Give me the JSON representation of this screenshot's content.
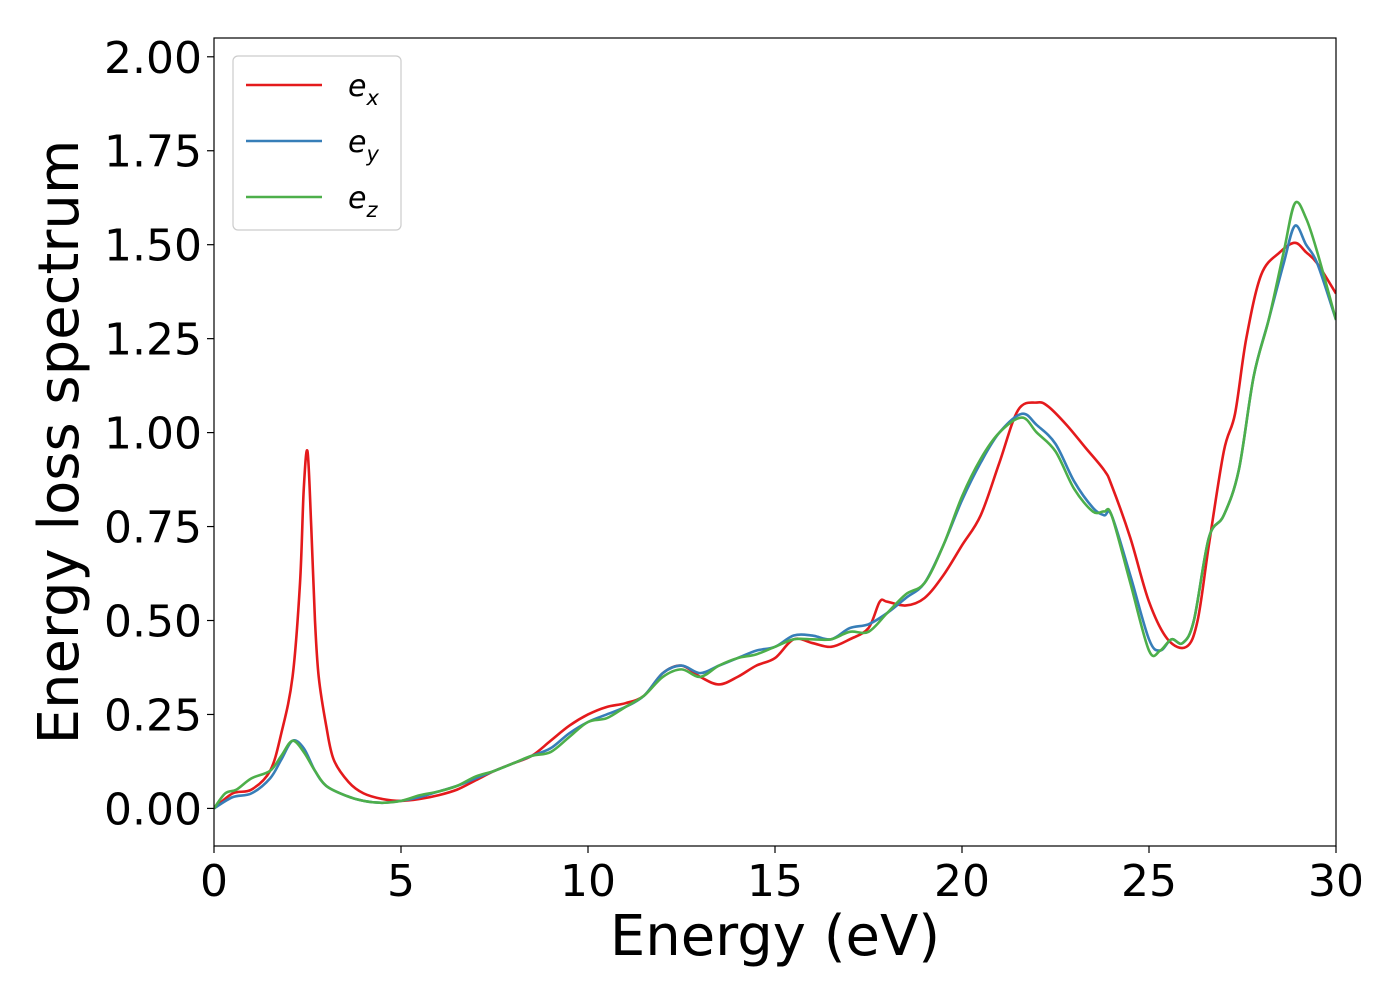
{
  "chart_data": {
    "type": "line",
    "title": "",
    "xlabel": "Energy (eV)",
    "ylabel": "Energy loss spectrum",
    "xlim": [
      0,
      30
    ],
    "ylim": [
      -0.1,
      2.05
    ],
    "xticks": [
      0,
      5,
      10,
      15,
      20,
      25,
      30
    ],
    "xtick_labels": [
      "0",
      "5",
      "10",
      "15",
      "20",
      "25",
      "30"
    ],
    "yticks": [
      0,
      0.25,
      0.5,
      0.75,
      1.0,
      1.25,
      1.5,
      1.75,
      2.0
    ],
    "ytick_labels": [
      "0.00",
      "0.25",
      "0.50",
      "0.75",
      "1.00",
      "1.25",
      "1.50",
      "1.75",
      "2.00"
    ],
    "grid": false,
    "legend_position": "top-left",
    "series": [
      {
        "name": "e_x",
        "legend_base": "e",
        "legend_sub": "x",
        "color": "#e41a1c",
        "x": [
          0,
          0.5,
          1.0,
          1.5,
          1.8,
          2.1,
          2.3,
          2.4,
          2.5,
          2.6,
          2.7,
          2.8,
          3.0,
          3.2,
          3.6,
          4.0,
          4.5,
          5.0,
          5.5,
          6.0,
          6.5,
          7.0,
          7.5,
          8.0,
          8.5,
          9.0,
          9.5,
          10.0,
          10.5,
          11.0,
          11.5,
          12.0,
          12.5,
          13.0,
          13.5,
          14.0,
          14.5,
          15.0,
          15.5,
          16.0,
          16.5,
          17.0,
          17.5,
          17.8,
          18.0,
          18.5,
          19.0,
          19.5,
          20.0,
          20.5,
          21.0,
          21.5,
          22.0,
          22.3,
          22.8,
          23.3,
          23.8,
          24.0,
          24.5,
          25.0,
          25.5,
          26.0,
          26.3,
          26.6,
          27.0,
          27.3,
          27.6,
          28.0,
          28.5,
          28.9,
          29.2,
          29.5,
          30.0
        ],
        "y": [
          0.0,
          0.04,
          0.05,
          0.1,
          0.2,
          0.35,
          0.6,
          0.85,
          0.95,
          0.75,
          0.5,
          0.35,
          0.22,
          0.13,
          0.07,
          0.04,
          0.025,
          0.02,
          0.025,
          0.035,
          0.05,
          0.075,
          0.1,
          0.12,
          0.14,
          0.18,
          0.22,
          0.25,
          0.27,
          0.28,
          0.3,
          0.36,
          0.38,
          0.35,
          0.33,
          0.35,
          0.38,
          0.4,
          0.45,
          0.44,
          0.43,
          0.45,
          0.48,
          0.55,
          0.55,
          0.54,
          0.56,
          0.62,
          0.7,
          0.78,
          0.92,
          1.06,
          1.08,
          1.07,
          1.02,
          0.96,
          0.9,
          0.86,
          0.72,
          0.55,
          0.45,
          0.43,
          0.5,
          0.7,
          0.95,
          1.05,
          1.25,
          1.42,
          1.48,
          1.505,
          1.48,
          1.45,
          1.37
        ]
      },
      {
        "name": "e_y",
        "legend_base": "e",
        "legend_sub": "y",
        "color": "#377eb8",
        "x": [
          0,
          0.5,
          1.0,
          1.5,
          1.8,
          2.1,
          2.4,
          2.7,
          3.0,
          3.5,
          4.0,
          4.5,
          5.0,
          5.5,
          6.0,
          6.5,
          7.0,
          7.5,
          8.0,
          8.5,
          9.0,
          9.5,
          10.0,
          10.5,
          11.0,
          11.5,
          12.0,
          12.5,
          13.0,
          13.5,
          14.0,
          14.5,
          15.0,
          15.5,
          16.0,
          16.5,
          17.0,
          17.5,
          18.0,
          18.5,
          19.0,
          19.5,
          20.0,
          20.5,
          21.0,
          21.6,
          22.0,
          22.5,
          23.0,
          23.5,
          23.8,
          24.0,
          24.5,
          25.0,
          25.3,
          25.6,
          25.9,
          26.2,
          26.6,
          27.0,
          27.4,
          27.8,
          28.2,
          28.6,
          28.9,
          29.2,
          29.5,
          30.0
        ],
        "y": [
          0.0,
          0.03,
          0.04,
          0.08,
          0.13,
          0.18,
          0.16,
          0.1,
          0.06,
          0.035,
          0.02,
          0.015,
          0.02,
          0.03,
          0.045,
          0.06,
          0.08,
          0.1,
          0.12,
          0.14,
          0.16,
          0.2,
          0.23,
          0.25,
          0.27,
          0.3,
          0.36,
          0.38,
          0.36,
          0.38,
          0.4,
          0.42,
          0.43,
          0.46,
          0.46,
          0.45,
          0.48,
          0.49,
          0.52,
          0.56,
          0.6,
          0.7,
          0.82,
          0.92,
          1.0,
          1.05,
          1.02,
          0.97,
          0.87,
          0.8,
          0.78,
          0.78,
          0.62,
          0.45,
          0.42,
          0.45,
          0.44,
          0.5,
          0.72,
          0.78,
          0.9,
          1.15,
          1.3,
          1.45,
          1.55,
          1.5,
          1.45,
          1.3
        ]
      },
      {
        "name": "e_z",
        "legend_base": "e",
        "legend_sub": "z",
        "color": "#4daf4a",
        "x": [
          0,
          0.3,
          0.6,
          1.0,
          1.5,
          1.8,
          2.1,
          2.4,
          2.7,
          3.0,
          3.5,
          4.0,
          4.5,
          5.0,
          5.5,
          6.0,
          6.5,
          7.0,
          7.5,
          8.0,
          8.5,
          9.0,
          9.5,
          10.0,
          10.5,
          11.0,
          11.5,
          12.0,
          12.5,
          13.0,
          13.5,
          14.0,
          14.5,
          15.0,
          15.5,
          16.0,
          16.5,
          17.0,
          17.5,
          18.0,
          18.5,
          19.0,
          19.5,
          20.0,
          20.5,
          21.0,
          21.6,
          22.0,
          22.5,
          23.0,
          23.5,
          23.8,
          24.0,
          24.5,
          25.0,
          25.3,
          25.6,
          25.9,
          26.2,
          26.6,
          27.0,
          27.4,
          27.8,
          28.2,
          28.6,
          28.9,
          29.2,
          29.5,
          30.0
        ],
        "y": [
          0.0,
          0.04,
          0.05,
          0.08,
          0.1,
          0.14,
          0.18,
          0.15,
          0.1,
          0.06,
          0.035,
          0.02,
          0.015,
          0.02,
          0.035,
          0.045,
          0.06,
          0.085,
          0.1,
          0.12,
          0.14,
          0.15,
          0.19,
          0.23,
          0.24,
          0.27,
          0.3,
          0.35,
          0.37,
          0.35,
          0.38,
          0.4,
          0.41,
          0.43,
          0.45,
          0.45,
          0.45,
          0.47,
          0.47,
          0.52,
          0.57,
          0.6,
          0.7,
          0.83,
          0.93,
          1.0,
          1.04,
          1.0,
          0.95,
          0.85,
          0.79,
          0.79,
          0.78,
          0.6,
          0.42,
          0.42,
          0.45,
          0.44,
          0.5,
          0.72,
          0.78,
          0.9,
          1.15,
          1.3,
          1.48,
          1.61,
          1.57,
          1.48,
          1.3
        ]
      }
    ]
  }
}
